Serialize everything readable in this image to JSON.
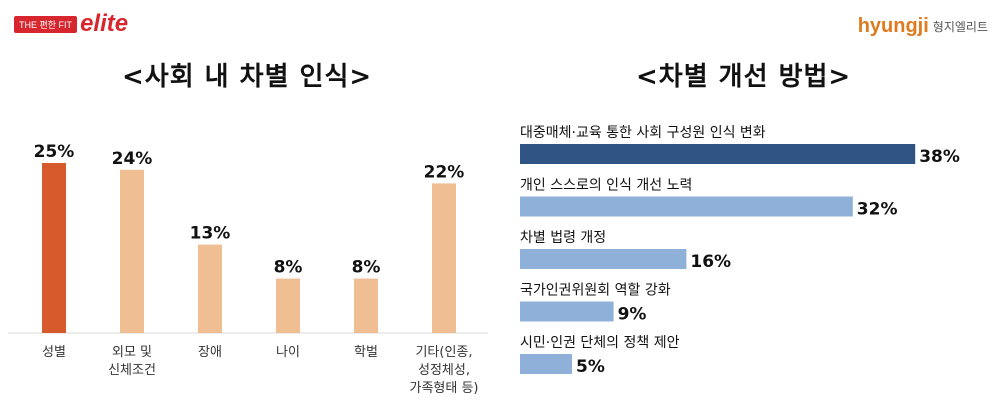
{
  "brand_left": {
    "prefix": "THE 편한 FIT",
    "word": "elite"
  },
  "brand_right": {
    "word": "hyungji",
    "korean": "형지엘리트"
  },
  "chart_data": [
    {
      "type": "bar",
      "title": "<사회 내 차별 인식>",
      "categories": [
        [
          "성별"
        ],
        [
          "외모 및",
          "신체조건"
        ],
        [
          "장애"
        ],
        [
          "나이"
        ],
        [
          "학벌"
        ],
        [
          "기타(인종,",
          "성정체성,",
          "가족형태 등)"
        ]
      ],
      "values": [
        25,
        24,
        13,
        8,
        8,
        22
      ],
      "value_labels": [
        "25%",
        "24%",
        "13%",
        "8%",
        "8%",
        "22%"
      ],
      "colors": [
        "#d65a2c",
        "#f0be93",
        "#f0be93",
        "#f0be93",
        "#f0be93",
        "#f0be93"
      ],
      "grid": false
    },
    {
      "type": "bar",
      "orientation": "horizontal",
      "title": "<차별 개선 방법>",
      "categories": [
        "대중매체·교육 통한 사회 구성원 인식 변화",
        "개인 스스로의 인식 개선 노력",
        "차별 법령 개정",
        "국가인권위원회 역할 강화",
        "시민·인권 단체의 정책 제안"
      ],
      "values": [
        38,
        32,
        16,
        9,
        5
      ],
      "value_labels": [
        "38%",
        "32%",
        "16%",
        "9%",
        "5%"
      ],
      "colors": [
        "#2f5383",
        "#8fb1d9",
        "#8fb1d9",
        "#8fb1d9",
        "#8fb1d9"
      ],
      "grid": false
    }
  ]
}
